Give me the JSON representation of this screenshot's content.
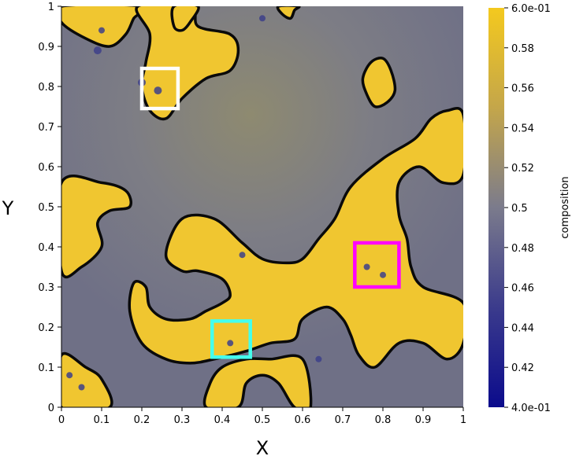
{
  "chart_data": {
    "type": "heatmap",
    "field_name": "composition",
    "colormap": "Plasma-like (navy to yellow)",
    "colors": {
      "low": "#10109a",
      "mid": "#7b7b8c",
      "high": "#f0c630",
      "contour": "#0a0a0a"
    },
    "value_range": [
      0.4,
      0.6
    ],
    "x": {
      "label": "X",
      "lim": [
        0,
        1
      ],
      "ticks": [
        0,
        0.1,
        0.2,
        0.3,
        0.4,
        0.5,
        0.6,
        0.7,
        0.8,
        0.9,
        1
      ],
      "tick_labels": [
        "0",
        "0.1",
        "0.2",
        "0.3",
        "0.4",
        "0.5",
        "0.6",
        "0.7",
        "0.8",
        "0.9",
        "1"
      ]
    },
    "y": {
      "label": "Y",
      "lim": [
        0,
        1
      ],
      "ticks": [
        0,
        0.1,
        0.2,
        0.3,
        0.4,
        0.5,
        0.6,
        0.7,
        0.8,
        0.9,
        1
      ],
      "tick_labels": [
        "0",
        "0.1",
        "0.2",
        "0.3",
        "0.4",
        "0.5",
        "0.6",
        "0.7",
        "0.8",
        "0.9",
        "1"
      ]
    },
    "colorbar": {
      "title": "composition",
      "ticks": [
        0.6,
        0.58,
        0.56,
        0.54,
        0.52,
        0.5,
        0.48,
        0.46,
        0.44,
        0.42,
        0.4
      ],
      "tick_labels": [
        "6.0e-01",
        "0.58",
        "0.56",
        "0.54",
        "0.52",
        "0.5",
        "0.48",
        "0.46",
        "0.44",
        "0.42",
        "4.0e-01"
      ]
    },
    "highlight_boxes": [
      {
        "name": "white-box",
        "color": "#ffffff",
        "x0": 0.2,
        "x1": 0.29,
        "y0": 0.745,
        "y1": 0.845
      },
      {
        "name": "magenta-box",
        "color": "#ff00ff",
        "x0": 0.73,
        "x1": 0.84,
        "y0": 0.3,
        "y1": 0.41
      },
      {
        "name": "cyan-box",
        "color": "#44ffee",
        "x0": 0.375,
        "x1": 0.47,
        "y0": 0.125,
        "y1": 0.215
      }
    ],
    "regions": [
      {
        "name": "top-left-arm",
        "points": [
          [
            0,
            0.96
          ],
          [
            0.06,
            0.92
          ],
          [
            0.12,
            0.9
          ],
          [
            0.16,
            0.93
          ],
          [
            0.18,
            0.97
          ],
          [
            0.2,
            1
          ],
          [
            0,
            1
          ]
        ]
      },
      {
        "name": "top-left-body",
        "points": [
          [
            0.19,
            1
          ],
          [
            0.22,
            0.93
          ],
          [
            0.21,
            0.86
          ],
          [
            0.2,
            0.8
          ],
          [
            0.22,
            0.74
          ],
          [
            0.26,
            0.72
          ],
          [
            0.3,
            0.77
          ],
          [
            0.36,
            0.82
          ],
          [
            0.42,
            0.84
          ],
          [
            0.44,
            0.89
          ],
          [
            0.42,
            0.93
          ],
          [
            0.34,
            0.95
          ],
          [
            0.32,
            1
          ]
        ]
      },
      {
        "name": "top-middle-blob",
        "points": [
          [
            0.28,
            1
          ],
          [
            0.28,
            0.95
          ],
          [
            0.3,
            0.94
          ],
          [
            0.32,
            0.96
          ],
          [
            0.34,
            1
          ]
        ]
      },
      {
        "name": "top-right-arm",
        "points": [
          [
            0.54,
            1
          ],
          [
            0.55,
            0.98
          ],
          [
            0.57,
            0.97
          ],
          [
            0.58,
            0.99
          ],
          [
            0.59,
            1
          ]
        ]
      },
      {
        "name": "oval-right",
        "points": [
          [
            0.77,
            0.86
          ],
          [
            0.8,
            0.87
          ],
          [
            0.82,
            0.84
          ],
          [
            0.83,
            0.79
          ],
          [
            0.81,
            0.76
          ],
          [
            0.78,
            0.75
          ],
          [
            0.76,
            0.78
          ],
          [
            0.75,
            0.82
          ]
        ]
      },
      {
        "name": "left-mid-band",
        "points": [
          [
            0,
            0.56
          ],
          [
            0.1,
            0.56
          ],
          [
            0.16,
            0.54
          ],
          [
            0.17,
            0.5
          ],
          [
            0.12,
            0.49
          ],
          [
            0.09,
            0.46
          ],
          [
            0.1,
            0.4
          ],
          [
            0.05,
            0.35
          ],
          [
            0,
            0.34
          ]
        ]
      },
      {
        "name": "center-network",
        "points": [
          [
            0.26,
            0.38
          ],
          [
            0.3,
            0.47
          ],
          [
            0.38,
            0.47
          ],
          [
            0.45,
            0.41
          ],
          [
            0.5,
            0.37
          ],
          [
            0.56,
            0.36
          ],
          [
            0.6,
            0.37
          ],
          [
            0.64,
            0.42
          ],
          [
            0.68,
            0.47
          ],
          [
            0.72,
            0.55
          ],
          [
            0.8,
            0.62
          ],
          [
            0.88,
            0.67
          ],
          [
            0.92,
            0.72
          ],
          [
            0.96,
            0.74
          ],
          [
            1,
            0.73
          ],
          [
            1,
            0.58
          ],
          [
            0.95,
            0.56
          ],
          [
            0.89,
            0.6
          ],
          [
            0.84,
            0.56
          ],
          [
            0.84,
            0.48
          ],
          [
            0.86,
            0.42
          ],
          [
            0.87,
            0.35
          ],
          [
            0.9,
            0.3
          ],
          [
            1,
            0.26
          ],
          [
            1,
            0.16
          ],
          [
            0.96,
            0.12
          ],
          [
            0.9,
            0.16
          ],
          [
            0.84,
            0.16
          ],
          [
            0.78,
            0.1
          ],
          [
            0.74,
            0.13
          ],
          [
            0.72,
            0.18
          ],
          [
            0.7,
            0.22
          ],
          [
            0.66,
            0.25
          ],
          [
            0.6,
            0.22
          ],
          [
            0.58,
            0.17
          ],
          [
            0.52,
            0.16
          ],
          [
            0.46,
            0.14
          ],
          [
            0.38,
            0.12
          ],
          [
            0.32,
            0.11
          ],
          [
            0.26,
            0.12
          ],
          [
            0.2,
            0.16
          ],
          [
            0.17,
            0.24
          ],
          [
            0.18,
            0.31
          ],
          [
            0.21,
            0.3
          ],
          [
            0.22,
            0.25
          ],
          [
            0.26,
            0.22
          ],
          [
            0.32,
            0.22
          ],
          [
            0.36,
            0.24
          ],
          [
            0.4,
            0.26
          ],
          [
            0.42,
            0.28
          ],
          [
            0.4,
            0.32
          ],
          [
            0.34,
            0.34
          ],
          [
            0.3,
            0.34
          ]
        ]
      },
      {
        "name": "bottom-left-arm",
        "points": [
          [
            0,
            0.13
          ],
          [
            0.06,
            0.1
          ],
          [
            0.1,
            0.07
          ],
          [
            0.12,
            0
          ],
          [
            0,
            0
          ]
        ]
      },
      {
        "name": "bottom-center-arm",
        "points": [
          [
            0.36,
            0
          ],
          [
            0.44,
            0
          ],
          [
            0.46,
            0.06
          ],
          [
            0.5,
            0.08
          ],
          [
            0.54,
            0.06
          ],
          [
            0.58,
            0
          ],
          [
            0.62,
            0
          ],
          [
            0.6,
            0.12
          ],
          [
            0.52,
            0.12
          ],
          [
            0.46,
            0.12
          ],
          [
            0.4,
            0.1
          ],
          [
            0.37,
            0.06
          ]
        ]
      }
    ]
  }
}
